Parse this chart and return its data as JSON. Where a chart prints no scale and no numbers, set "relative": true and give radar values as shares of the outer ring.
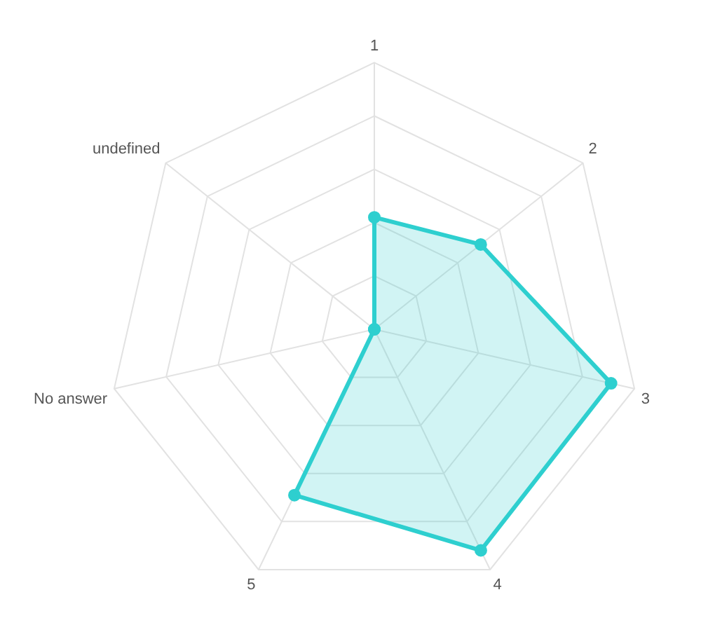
{
  "chart_data": {
    "type": "radar",
    "relative": true,
    "grid": true,
    "legend": false,
    "marker": "circle",
    "categories": [
      "1",
      "2",
      "3",
      "4",
      "5",
      "No answer",
      "undefined"
    ],
    "series": [
      {
        "color": "#2ecfcf",
        "values": [
          0.42,
          0.51,
          0.91,
          0.92,
          0.69,
          0,
          0
        ]
      }
    ]
  }
}
